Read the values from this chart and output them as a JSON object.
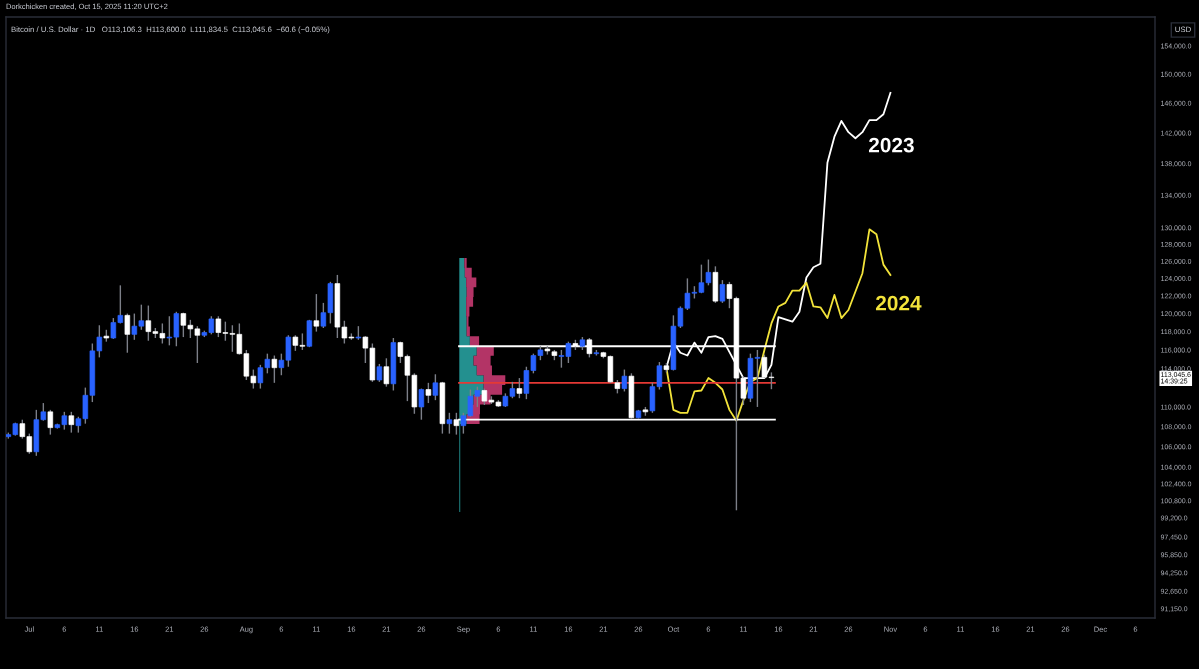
{
  "chart_data": {
    "type": "candlestick",
    "title": "Bitcoin / U.S. Dollar · 1D   O113,106.3  H113,600.0  L111,834.5  C113,045.6  −60.6 (−0.05%)",
    "annotations": [
      "Dorkchicken created, Oct 15, 2025 11:20 UTC+2"
    ],
    "ylabel": "USD",
    "log": true,
    "x": [
      "2025-06-28",
      "2025-06-29",
      "2025-06-30",
      "2025-07-01",
      "2025-07-02",
      "2025-07-03",
      "2025-07-04",
      "2025-07-05",
      "2025-07-06",
      "2025-07-07",
      "2025-07-08",
      "2025-07-09",
      "2025-07-10",
      "2025-07-11",
      "2025-07-12",
      "2025-07-13",
      "2025-07-14",
      "2025-07-15",
      "2025-07-16",
      "2025-07-17",
      "2025-07-18",
      "2025-07-19",
      "2025-07-20",
      "2025-07-21",
      "2025-07-22",
      "2025-07-23",
      "2025-07-24",
      "2025-07-25",
      "2025-07-26",
      "2025-07-27",
      "2025-07-28",
      "2025-07-29",
      "2025-07-30",
      "2025-07-31",
      "2025-08-01",
      "2025-08-02",
      "2025-08-03",
      "2025-08-04",
      "2025-08-05",
      "2025-08-06",
      "2025-08-07",
      "2025-08-08",
      "2025-08-09",
      "2025-08-10",
      "2025-08-11",
      "2025-08-12",
      "2025-08-13",
      "2025-08-14",
      "2025-08-15",
      "2025-08-16",
      "2025-08-17",
      "2025-08-18",
      "2025-08-19",
      "2025-08-20",
      "2025-08-21",
      "2025-08-22",
      "2025-08-23",
      "2025-08-24",
      "2025-08-25",
      "2025-08-26",
      "2025-08-27",
      "2025-08-28",
      "2025-08-29",
      "2025-08-30",
      "2025-08-31",
      "2025-09-01",
      "2025-09-02",
      "2025-09-03",
      "2025-09-04",
      "2025-09-05",
      "2025-09-06",
      "2025-09-07",
      "2025-09-08",
      "2025-09-09",
      "2025-09-10",
      "2025-09-11",
      "2025-09-12",
      "2025-09-13",
      "2025-09-14",
      "2025-09-15",
      "2025-09-16",
      "2025-09-17",
      "2025-09-18",
      "2025-09-19",
      "2025-09-20",
      "2025-09-21",
      "2025-09-22",
      "2025-09-23",
      "2025-09-24",
      "2025-09-25",
      "2025-09-26",
      "2025-09-27",
      "2025-09-28",
      "2025-09-29",
      "2025-09-30",
      "2025-10-01",
      "2025-10-02",
      "2025-10-03",
      "2025-10-04",
      "2025-10-05",
      "2025-10-06",
      "2025-10-07",
      "2025-10-08",
      "2025-10-09",
      "2025-10-10",
      "2025-10-11",
      "2025-10-12",
      "2025-10-13",
      "2025-10-14",
      "2025-10-15"
    ],
    "ohlc": [
      [
        107000,
        107400,
        106800,
        107200
      ],
      [
        107200,
        108400,
        107100,
        108300
      ],
      [
        108300,
        108700,
        106800,
        107000
      ],
      [
        107000,
        107300,
        105300,
        105500
      ],
      [
        105500,
        109700,
        105100,
        108700
      ],
      [
        108700,
        110400,
        108600,
        109500
      ],
      [
        109500,
        109700,
        107200,
        107900
      ],
      [
        107900,
        108300,
        107800,
        108200
      ],
      [
        108200,
        109500,
        107700,
        109100
      ],
      [
        109100,
        109500,
        107400,
        108200
      ],
      [
        108100,
        109000,
        107400,
        108800
      ],
      [
        108800,
        112000,
        108300,
        111200
      ],
      [
        111200,
        116700,
        110500,
        115900
      ],
      [
        115900,
        118700,
        115200,
        117400
      ],
      [
        117500,
        118200,
        116900,
        117300
      ],
      [
        117300,
        119500,
        117200,
        119000
      ],
      [
        119000,
        123200,
        118900,
        119800
      ],
      [
        119800,
        120000,
        115700,
        117700
      ],
      [
        117700,
        120000,
        117100,
        118600
      ],
      [
        118600,
        121000,
        118200,
        119200
      ],
      [
        119200,
        120900,
        117000,
        118000
      ],
      [
        118000,
        118400,
        117300,
        117800
      ],
      [
        117800,
        118900,
        116700,
        117300
      ],
      [
        117300,
        119700,
        116500,
        117400
      ],
      [
        117400,
        120200,
        116400,
        120000
      ],
      [
        120000,
        120100,
        117400,
        118700
      ],
      [
        118700,
        119300,
        117300,
        118300
      ],
      [
        118300,
        118600,
        114600,
        117600
      ],
      [
        117600,
        118100,
        117400,
        117900
      ],
      [
        117900,
        119700,
        117700,
        119400
      ],
      [
        119400,
        119700,
        117400,
        117900
      ],
      [
        117900,
        119100,
        117000,
        117800
      ],
      [
        117800,
        118700,
        115800,
        117700
      ],
      [
        117700,
        118900,
        115500,
        115600
      ],
      [
        115600,
        116000,
        112800,
        113200
      ],
      [
        113200,
        113900,
        111900,
        112500
      ],
      [
        112500,
        114400,
        111900,
        114100
      ],
      [
        114100,
        115600,
        113500,
        115000
      ],
      [
        115000,
        115400,
        112500,
        114100
      ],
      [
        114100,
        115600,
        113300,
        114900
      ],
      [
        114900,
        117600,
        114200,
        117400
      ],
      [
        117400,
        117600,
        115900,
        116500
      ],
      [
        116500,
        117800,
        116000,
        116400
      ],
      [
        116400,
        119300,
        116300,
        119200
      ],
      [
        119200,
        122200,
        118000,
        118600
      ],
      [
        118600,
        121200,
        118400,
        120100
      ],
      [
        120100,
        123600,
        118900,
        123400
      ],
      [
        123400,
        124400,
        117300,
        118500
      ],
      [
        118500,
        119200,
        116700,
        117300
      ],
      [
        117400,
        117800,
        117100,
        117300
      ],
      [
        117300,
        118600,
        117100,
        117400
      ],
      [
        117400,
        117500,
        114600,
        116200
      ],
      [
        116200,
        116700,
        112600,
        112800
      ],
      [
        112800,
        114500,
        112600,
        114200
      ],
      [
        114200,
        115100,
        112100,
        112400
      ],
      [
        112400,
        117300,
        111700,
        116800
      ],
      [
        116800,
        116900,
        114600,
        115300
      ],
      [
        115300,
        115500,
        110600,
        113300
      ],
      [
        113300,
        113500,
        109300,
        110000
      ],
      [
        110000,
        111900,
        108700,
        111800
      ],
      [
        111800,
        112500,
        110400,
        111200
      ],
      [
        111200,
        113400,
        110700,
        112500
      ],
      [
        112500,
        112600,
        107300,
        108300
      ],
      [
        108300,
        109400,
        107300,
        108700
      ],
      [
        108700,
        109400,
        107200,
        108100
      ],
      [
        108100,
        109400,
        107300,
        109100
      ],
      [
        109100,
        111800,
        109000,
        111100
      ],
      [
        111100,
        112100,
        110000,
        111700
      ],
      [
        111700,
        111900,
        110200,
        110600
      ],
      [
        110700,
        111100,
        110300,
        110500
      ],
      [
        110500,
        110700,
        110000,
        110100
      ],
      [
        110100,
        111400,
        110000,
        111100
      ],
      [
        111100,
        112600,
        110900,
        111900
      ],
      [
        111900,
        113000,
        110900,
        111400
      ],
      [
        111400,
        114200,
        110800,
        113800
      ],
      [
        113800,
        115600,
        113500,
        115400
      ],
      [
        115400,
        116400,
        114900,
        116000
      ],
      [
        116100,
        116400,
        115500,
        115900
      ],
      [
        115800,
        116000,
        114900,
        115400
      ],
      [
        115300,
        116000,
        114100,
        115400
      ],
      [
        115300,
        116900,
        114600,
        116700
      ],
      [
        116700,
        117100,
        116000,
        116400
      ],
      [
        116400,
        117400,
        116000,
        117100
      ],
      [
        117100,
        117300,
        115200,
        115600
      ],
      [
        115600,
        116000,
        115400,
        115700
      ],
      [
        115700,
        115800,
        115100,
        115300
      ],
      [
        115300,
        115400,
        112500,
        112600
      ],
      [
        112500,
        112800,
        111400,
        111900
      ],
      [
        111900,
        113900,
        111600,
        113200
      ],
      [
        113200,
        113500,
        108800,
        108900
      ],
      [
        108900,
        109700,
        108800,
        109600
      ],
      [
        109700,
        110000,
        109100,
        109500
      ],
      [
        109600,
        112500,
        109400,
        112100
      ],
      [
        112100,
        114700,
        111800,
        114300
      ],
      [
        114300,
        114600,
        113600,
        113900
      ],
      [
        113900,
        119800,
        113800,
        118600
      ],
      [
        118600,
        120800,
        118400,
        120600
      ],
      [
        120600,
        124000,
        120400,
        122300
      ],
      [
        122300,
        123100,
        121700,
        122400
      ],
      [
        122400,
        125600,
        122300,
        123500
      ],
      [
        123500,
        126200,
        123200,
        124700
      ],
      [
        124700,
        125400,
        121200,
        121400
      ],
      [
        121400,
        123800,
        121200,
        123300
      ],
      [
        123300,
        123600,
        120600,
        121700
      ],
      [
        121700,
        121900,
        99900,
        113000
      ],
      [
        113000,
        113200,
        110200,
        110900
      ],
      [
        110900,
        115600,
        110500,
        115100
      ],
      [
        115100,
        116000,
        110000,
        115200
      ],
      [
        115200,
        115500,
        113000,
        113100
      ],
      [
        113106.3,
        113600.0,
        111834.5,
        113045.6
      ]
    ],
    "colors": [
      "#2962ff",
      "#2962ff",
      "#ffffff",
      "#ffffff",
      "#2962ff",
      "#2962ff",
      "#ffffff",
      "#2962ff",
      "#2962ff",
      "#ffffff",
      "#2962ff",
      "#2962ff",
      "#2962ff",
      "#2962ff",
      "#ffffff",
      "#2962ff",
      "#2962ff",
      "#ffffff",
      "#2962ff",
      "#2962ff",
      "#ffffff",
      "#ffffff",
      "#ffffff",
      "#2962ff",
      "#2962ff",
      "#ffffff",
      "#ffffff",
      "#ffffff",
      "#2962ff",
      "#2962ff",
      "#ffffff",
      "#ffffff",
      "#ffffff",
      "#ffffff",
      "#ffffff",
      "#ffffff",
      "#2962ff",
      "#2962ff",
      "#ffffff",
      "#2962ff",
      "#2962ff",
      "#ffffff",
      "#ffffff",
      "#2962ff",
      "#ffffff",
      "#2962ff",
      "#2962ff",
      "#ffffff",
      "#ffffff",
      "#ffffff",
      "#2962ff",
      "#ffffff",
      "#ffffff",
      "#2962ff",
      "#ffffff",
      "#2962ff",
      "#ffffff",
      "#ffffff",
      "#ffffff",
      "#2962ff",
      "#ffffff",
      "#2962ff",
      "#ffffff",
      "#2962ff",
      "#ffffff",
      "#2962ff",
      "#2962ff",
      "#2962ff",
      "#ffffff",
      "#ffffff",
      "#ffffff",
      "#2962ff",
      "#2962ff",
      "#ffffff",
      "#2962ff",
      "#2962ff",
      "#2962ff",
      "#ffffff",
      "#ffffff",
      "#2962ff",
      "#2962ff",
      "#ffffff",
      "#2962ff",
      "#ffffff",
      "#2962ff",
      "#ffffff",
      "#ffffff",
      "#ffffff",
      "#2962ff",
      "#ffffff",
      "#2962ff",
      "#ffffff",
      "#2962ff",
      "#2962ff",
      "#ffffff",
      "#2962ff",
      "#2962ff",
      "#2962ff",
      "#2962ff",
      "#2962ff",
      "#2962ff",
      "#ffffff",
      "#2962ff",
      "#ffffff",
      "#ffffff",
      "#ffffff",
      "#2962ff",
      "#2962ff",
      "#ffffff",
      "#ffffff"
    ],
    "series": [
      {
        "type": "line",
        "name": "2023",
        "color": "#ffffff",
        "x": [
          "2025-09-30",
          "2025-10-01",
          "2025-10-02",
          "2025-10-03",
          "2025-10-04",
          "2025-10-05",
          "2025-10-06",
          "2025-10-07",
          "2025-10-08",
          "2025-10-11",
          "2025-10-14",
          "2025-10-15",
          "2025-10-16",
          "2025-10-18",
          "2025-10-19",
          "2025-10-20",
          "2025-10-21",
          "2025-10-22",
          "2025-10-23",
          "2025-10-24",
          "2025-10-25",
          "2025-10-26",
          "2025-10-27",
          "2025-10-28",
          "2025-10-29",
          "2025-10-30",
          "2025-10-31",
          "2025-11-01"
        ],
        "values": [
          114100,
          116800,
          115700,
          115400,
          116800,
          115700,
          117400,
          117500,
          117200,
          113000,
          113000,
          114400,
          119600,
          119100,
          120200,
          124100,
          125300,
          125700,
          138100,
          141500,
          143600,
          142100,
          141300,
          142100,
          143700,
          143700,
          144500,
          147400
        ]
      },
      {
        "type": "line",
        "name": "2024",
        "color": "#f2e33a",
        "x": [
          "2025-09-30",
          "2025-10-01",
          "2025-10-02",
          "2025-10-03",
          "2025-10-04",
          "2025-10-05",
          "2025-10-06",
          "2025-10-07",
          "2025-10-08",
          "2025-10-09",
          "2025-10-10",
          "2025-10-11",
          "2025-10-12",
          "2025-10-13",
          "2025-10-14",
          "2025-10-15",
          "2025-10-16",
          "2025-10-17",
          "2025-10-18",
          "2025-10-19",
          "2025-10-20",
          "2025-10-21",
          "2025-10-22",
          "2025-10-23",
          "2025-10-24",
          "2025-10-25",
          "2025-10-26",
          "2025-10-28",
          "2025-10-29",
          "2025-10-30",
          "2025-10-31",
          "2025-11-01"
        ],
        "values": [
          114100,
          109700,
          109400,
          109400,
          111600,
          111700,
          113000,
          112500,
          111800,
          109700,
          108600,
          110700,
          112600,
          113000,
          116000,
          118900,
          120800,
          121200,
          122600,
          122600,
          123500,
          120800,
          120700,
          119500,
          122100,
          119500,
          120400,
          124600,
          129800,
          129200,
          125600,
          124400
        ]
      },
      {
        "type": "line",
        "color": "#ffffff",
        "x": [
          "2025-08-31T09:00",
          "2025-10-15T12:00"
        ],
        "values": [
          116400,
          116400
        ]
      },
      {
        "type": "line",
        "color": "#ffffff",
        "x": [
          "2025-08-31T09:00",
          "2025-10-15T12:00"
        ],
        "values": [
          108700,
          108700
        ]
      },
      {
        "type": "line",
        "color": "#e53935",
        "x": [
          "2025-08-31T09:00",
          "2025-10-15T12:00"
        ],
        "values": [
          112500,
          112500
        ]
      }
    ],
    "xlim": [
      "2025-06-27T16:00",
      "2025-12-08T19:00"
    ],
    "xticks": [
      {
        "value": "2025-07-01",
        "label": "Jul"
      },
      {
        "value": "2025-07-06",
        "label": "6"
      },
      {
        "value": "2025-07-11",
        "label": "11"
      },
      {
        "value": "2025-07-16",
        "label": "16"
      },
      {
        "value": "2025-07-21",
        "label": "21"
      },
      {
        "value": "2025-07-26",
        "label": "26"
      },
      {
        "value": "2025-08-01",
        "label": "Aug"
      },
      {
        "value": "2025-08-06",
        "label": "6"
      },
      {
        "value": "2025-08-11",
        "label": "11"
      },
      {
        "value": "2025-08-16",
        "label": "16"
      },
      {
        "value": "2025-08-21",
        "label": "21"
      },
      {
        "value": "2025-08-26",
        "label": "26"
      },
      {
        "value": "2025-09-01",
        "label": "Sep"
      },
      {
        "value": "2025-09-06",
        "label": "6"
      },
      {
        "value": "2025-09-11",
        "label": "11"
      },
      {
        "value": "2025-09-16",
        "label": "16"
      },
      {
        "value": "2025-09-21",
        "label": "21"
      },
      {
        "value": "2025-09-26",
        "label": "26"
      },
      {
        "value": "2025-10-01",
        "label": "Oct"
      },
      {
        "value": "2025-10-06",
        "label": "6"
      },
      {
        "value": "2025-10-11",
        "label": "11"
      },
      {
        "value": "2025-10-16",
        "label": "16"
      },
      {
        "value": "2025-10-21",
        "label": "21"
      },
      {
        "value": "2025-10-26",
        "label": "26"
      },
      {
        "value": "2025-11-01",
        "label": "Nov"
      },
      {
        "value": "2025-11-06",
        "label": "6"
      },
      {
        "value": "2025-11-11",
        "label": "11"
      },
      {
        "value": "2025-11-16",
        "label": "16"
      },
      {
        "value": "2025-11-21",
        "label": "21"
      },
      {
        "value": "2025-11-26",
        "label": "26"
      },
      {
        "value": "2025-12-01",
        "label": "Dec"
      },
      {
        "value": "2025-12-06",
        "label": "6"
      }
    ],
    "ylim": [
      90360,
      158200
    ],
    "yticks": [
      {
        "value": 91150,
        "label": "91,150.0"
      },
      {
        "value": 92650,
        "label": "92,650.0"
      },
      {
        "value": 94250,
        "label": "94,250.0"
      },
      {
        "value": 95850,
        "label": "95,850.0"
      },
      {
        "value": 97450,
        "label": "97,450.0"
      },
      {
        "value": 99200,
        "label": "99,200.0"
      },
      {
        "value": 100800,
        "label": "100,800.0"
      },
      {
        "value": 102400,
        "label": "102,400.0"
      },
      {
        "value": 104000,
        "label": "104,000.0"
      },
      {
        "value": 106000,
        "label": "106,000.0"
      },
      {
        "value": 108000,
        "label": "108,000.0"
      },
      {
        "value": 110000,
        "label": "110,000.0"
      },
      {
        "value": 113045.6,
        "label": "113,045.6\n14:39:25"
      },
      {
        "value": 114000,
        "label": "114,000.0"
      },
      {
        "value": 116000,
        "label": "116,000.0"
      },
      {
        "value": 118000,
        "label": "118,000.0"
      },
      {
        "value": 120000,
        "label": "120,000.0"
      },
      {
        "value": 122000,
        "label": "122,000.0"
      },
      {
        "value": 124000,
        "label": "124,000.0"
      },
      {
        "value": 126000,
        "label": "126,000.0"
      },
      {
        "value": 128000,
        "label": "128,000.0"
      },
      {
        "value": 130000,
        "label": "130,000.0"
      },
      {
        "value": 134000,
        "label": "134,000.0"
      },
      {
        "value": 138000,
        "label": "138,000.0"
      },
      {
        "value": 142000,
        "label": "142,000.0"
      },
      {
        "value": 146000,
        "label": "146,000.0"
      },
      {
        "value": 150000,
        "label": "150,000.0"
      },
      {
        "value": 154000,
        "label": "154,000.0"
      }
    ]
  }
}
